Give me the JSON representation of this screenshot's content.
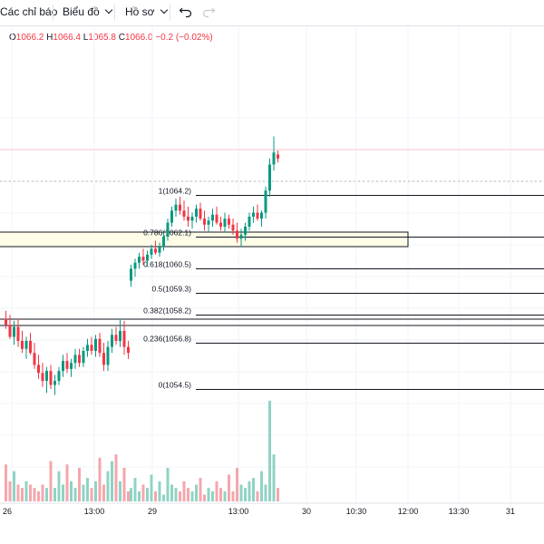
{
  "toolbar": {
    "indicators_label": "Các chỉ báo",
    "chart_label": "Biểu đồ",
    "profile_label": "Hồ sơ",
    "undo_icon": "undo-icon",
    "redo_icon": "redo-icon"
  },
  "ohlc": {
    "open_label": "O",
    "open": "1066.2",
    "high_label": "H",
    "high": "1066.4",
    "low_label": "L",
    "low": "1065.8",
    "close_label": "C",
    "close": "1066.0",
    "change": "−0.2 (−0.02%)"
  },
  "colors": {
    "up": "#089981",
    "down": "#f23645",
    "up_volume": "#8fd3c4",
    "down_volume": "#f5a6ad",
    "zone_fill": "#fffde8"
  },
  "fib_levels": [
    {
      "ratio": "1",
      "price": 1064.2,
      "label": "1(1064.2)"
    },
    {
      "ratio": "0.786",
      "price": 1062.1,
      "label": "0.786(1062.1)"
    },
    {
      "ratio": "0.618",
      "price": 1060.5,
      "label": "0.618(1060.5)"
    },
    {
      "ratio": "0.5",
      "price": 1059.3,
      "label": "0.5(1059.3)"
    },
    {
      "ratio": "0.382",
      "price": 1058.2,
      "label": "0.382(1058.2)"
    },
    {
      "ratio": "0.236",
      "price": 1056.8,
      "label": "0.236(1056.8)"
    },
    {
      "ratio": "0",
      "price": 1054.5,
      "label": "0(1054.5)"
    }
  ],
  "time_axis": [
    "26",
    "13:00",
    "29",
    "13:00",
    "30",
    "10:30",
    "12:00",
    "13:30",
    "31"
  ],
  "chart_data": {
    "type": "candlestick",
    "price_range": [
      1052.6,
      1068.4
    ],
    "candles_day26": [
      [
        1058.0,
        1058.4,
        1057.5,
        1057.7
      ],
      [
        1057.7,
        1058.2,
        1057.0,
        1057.1
      ],
      [
        1057.1,
        1057.9,
        1056.7,
        1057.6
      ],
      [
        1057.6,
        1058.0,
        1056.6,
        1056.9
      ],
      [
        1056.9,
        1057.4,
        1056.3,
        1056.5
      ],
      [
        1056.5,
        1057.1,
        1056.0,
        1056.9
      ],
      [
        1056.9,
        1057.3,
        1056.2,
        1056.3
      ],
      [
        1056.3,
        1056.8,
        1055.5,
        1055.7
      ],
      [
        1055.7,
        1056.2,
        1055.0,
        1055.3
      ],
      [
        1055.3,
        1055.8,
        1054.6,
        1054.9
      ],
      [
        1054.9,
        1055.6,
        1054.3,
        1055.4
      ],
      [
        1055.4,
        1055.7,
        1054.5,
        1054.7
      ],
      [
        1054.7,
        1055.2,
        1054.2,
        1054.9
      ],
      [
        1054.9,
        1055.6,
        1054.7,
        1055.4
      ],
      [
        1055.4,
        1056.2,
        1055.1,
        1055.9
      ],
      [
        1055.9,
        1056.3,
        1055.3,
        1055.5
      ],
      [
        1055.5,
        1056.0,
        1055.1,
        1055.8
      ],
      [
        1055.8,
        1056.5,
        1055.5,
        1056.2
      ],
      [
        1056.2,
        1056.5,
        1055.6,
        1055.8
      ],
      [
        1055.8,
        1056.6,
        1055.6,
        1056.4
      ],
      [
        1056.4,
        1057.0,
        1056.1,
        1056.7
      ],
      [
        1056.7,
        1057.1,
        1056.2,
        1056.4
      ],
      [
        1056.4,
        1057.2,
        1056.1,
        1057.0
      ],
      [
        1057.0,
        1057.3,
        1056.1,
        1056.3
      ],
      [
        1056.3,
        1056.8,
        1055.4,
        1055.7
      ],
      [
        1055.7,
        1056.9,
        1055.4,
        1056.6
      ],
      [
        1056.6,
        1057.5,
        1056.3,
        1057.2
      ],
      [
        1057.2,
        1057.6,
        1056.7,
        1056.9
      ],
      [
        1056.9,
        1058.0,
        1056.6,
        1057.4
      ],
      [
        1057.4,
        1057.9,
        1056.2,
        1056.6
      ],
      [
        1056.6,
        1056.9,
        1056.0,
        1056.3
      ]
    ],
    "candles_day29": [
      [
        1059.9,
        1060.7,
        1059.6,
        1060.5
      ],
      [
        1060.5,
        1061.0,
        1060.1,
        1060.8
      ],
      [
        1060.8,
        1061.3,
        1060.5,
        1061.1
      ],
      [
        1061.1,
        1061.5,
        1060.7,
        1060.9
      ],
      [
        1060.9,
        1061.4,
        1060.6,
        1061.2
      ],
      [
        1061.2,
        1061.7,
        1061.0,
        1061.5
      ],
      [
        1061.5,
        1061.9,
        1061.2,
        1061.3
      ],
      [
        1061.3,
        1061.8,
        1061.1,
        1061.6
      ],
      [
        1061.6,
        1062.3,
        1061.4,
        1062.1
      ],
      [
        1062.1,
        1063.0,
        1061.9,
        1062.8
      ],
      [
        1062.8,
        1063.6,
        1062.6,
        1063.4
      ],
      [
        1063.4,
        1064.0,
        1063.1,
        1063.7
      ],
      [
        1063.7,
        1064.1,
        1063.2,
        1063.4
      ],
      [
        1063.4,
        1063.9,
        1062.9,
        1063.1
      ],
      [
        1063.1,
        1063.6,
        1062.6,
        1062.9
      ],
      [
        1062.9,
        1063.3,
        1062.5,
        1063.1
      ],
      [
        1063.1,
        1063.7,
        1062.8,
        1063.5
      ],
      [
        1063.5,
        1063.8,
        1062.9,
        1063.0
      ],
      [
        1063.0,
        1063.4,
        1062.4,
        1062.7
      ],
      [
        1062.7,
        1063.1,
        1062.3,
        1062.9
      ],
      [
        1062.9,
        1063.5,
        1062.6,
        1063.2
      ],
      [
        1063.2,
        1063.6,
        1062.7,
        1062.8
      ],
      [
        1062.8,
        1063.1,
        1062.4,
        1062.6
      ],
      [
        1062.6,
        1063.3,
        1062.3,
        1063.0
      ],
      [
        1063.0,
        1063.2,
        1062.5,
        1062.7
      ],
      [
        1062.7,
        1063.0,
        1062.2,
        1062.4
      ],
      [
        1062.4,
        1062.8,
        1061.8,
        1062.0
      ],
      [
        1062.0,
        1062.5,
        1061.6,
        1062.2
      ],
      [
        1062.2,
        1062.8,
        1061.9,
        1062.6
      ],
      [
        1062.6,
        1063.3,
        1062.4,
        1063.1
      ],
      [
        1063.1,
        1063.6,
        1062.8,
        1063.3
      ],
      [
        1063.3,
        1063.7,
        1062.9,
        1063.0
      ],
      [
        1063.0,
        1063.4,
        1062.6,
        1063.3
      ],
      [
        1063.3,
        1064.6,
        1063.0,
        1064.4
      ],
      [
        1064.4,
        1066.0,
        1064.1,
        1065.7
      ],
      [
        1065.7,
        1067.1,
        1065.4,
        1066.3
      ],
      [
        1066.2,
        1066.4,
        1065.8,
        1066.0
      ]
    ],
    "volumes_day26": [
      11,
      6,
      9,
      5,
      4,
      6,
      5,
      4,
      3,
      5,
      4,
      12,
      4,
      9,
      5,
      11,
      6,
      4,
      10,
      5,
      7,
      4,
      6,
      13,
      5,
      9,
      12,
      14,
      6,
      10,
      3
    ],
    "volumes_day29": [
      4,
      7,
      3,
      5,
      4,
      8,
      3,
      6,
      2,
      10,
      5,
      4,
      3,
      6,
      4,
      3,
      5,
      7,
      2,
      4,
      3,
      6,
      4,
      3,
      8,
      3,
      10,
      5,
      4,
      6,
      7,
      3,
      9,
      5,
      30,
      14,
      4
    ]
  }
}
